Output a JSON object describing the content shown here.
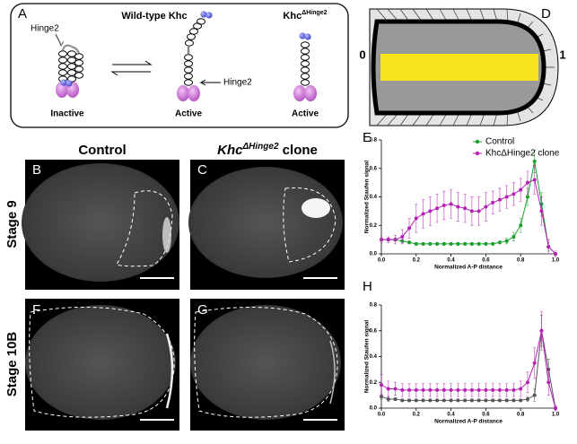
{
  "panel_labels": {
    "a": "A",
    "b": "B",
    "c": "C",
    "d": "D",
    "e": "E",
    "f": "F",
    "g": "G",
    "h": "H"
  },
  "diagram": {
    "wildtype_title": "Wild-type Khc",
    "mutant_title": {
      "base": "Khc",
      "sup": "ΔHinge2"
    },
    "hinge_label_inactive": "Hinge2",
    "hinge_label_active": "Hinge2",
    "state_inactive": "Inactive",
    "state_active_wt": "Active",
    "state_active_mutant": "Active"
  },
  "schematic": {
    "start": "0",
    "end": "1"
  },
  "columns": {
    "control": "Control",
    "clone": {
      "base": "Khc",
      "sup": "ΔHinge2",
      "rest": " clone"
    }
  },
  "rows": {
    "stage9": "Stage 9",
    "stage10b": "Stage 10B"
  },
  "chart_data": [
    {
      "type": "line",
      "xlabel": "Normalized A-P distance",
      "ylabel": "Normalized Staufen signal",
      "x": [
        0,
        0.04,
        0.08,
        0.12,
        0.16,
        0.2,
        0.24,
        0.28,
        0.32,
        0.36,
        0.4,
        0.44,
        0.48,
        0.52,
        0.56,
        0.6,
        0.64,
        0.68,
        0.72,
        0.76,
        0.8,
        0.84,
        0.88,
        0.92,
        0.96,
        1.0
      ],
      "series": [
        {
          "name": "Control",
          "color": "#1e9e2e",
          "values": [
            0.1,
            0.1,
            0.1,
            0.09,
            0.08,
            0.07,
            0.07,
            0.07,
            0.07,
            0.07,
            0.07,
            0.07,
            0.07,
            0.07,
            0.07,
            0.07,
            0.07,
            0.08,
            0.09,
            0.12,
            0.2,
            0.4,
            0.65,
            0.35,
            0.05,
            0.0
          ],
          "errors": [
            0.01,
            0.01,
            0.01,
            0.01,
            0.01,
            0.01,
            0.01,
            0.01,
            0.01,
            0.01,
            0.01,
            0.01,
            0.01,
            0.01,
            0.01,
            0.01,
            0.01,
            0.01,
            0.02,
            0.03,
            0.05,
            0.06,
            0.08,
            0.08,
            0.03,
            0.01
          ]
        },
        {
          "name": "KhcΔHinge2 clone",
          "color": "#b622b6",
          "values": [
            0.1,
            0.1,
            0.1,
            0.12,
            0.18,
            0.25,
            0.28,
            0.3,
            0.32,
            0.34,
            0.35,
            0.33,
            0.32,
            0.3,
            0.3,
            0.33,
            0.36,
            0.38,
            0.4,
            0.42,
            0.45,
            0.5,
            0.52,
            0.3,
            0.05,
            0.0
          ],
          "errors": [
            0.02,
            0.02,
            0.03,
            0.05,
            0.07,
            0.1,
            0.1,
            0.1,
            0.1,
            0.1,
            0.1,
            0.1,
            0.1,
            0.1,
            0.1,
            0.1,
            0.08,
            0.08,
            0.08,
            0.08,
            0.08,
            0.08,
            0.1,
            0.1,
            0.05,
            0.02
          ]
        }
      ],
      "xlim": [
        0,
        1.0
      ],
      "xticks": [
        {
          "value": 0,
          "label": "0.0"
        },
        0.2,
        0.4,
        0.6,
        0.8,
        {
          "value": 1.0,
          "label": "1.0"
        }
      ],
      "ylim": [
        0,
        0.8
      ],
      "yticks": [
        {
          "value": 0,
          "label": "0.0"
        },
        0.2,
        0.4,
        0.6,
        0.8
      ],
      "legend": "upper right"
    },
    {
      "type": "line",
      "xlabel": "Normalized A-P distance",
      "ylabel": "Normalized Staufen signal",
      "x": [
        0,
        0.04,
        0.08,
        0.12,
        0.16,
        0.2,
        0.24,
        0.28,
        0.32,
        0.36,
        0.4,
        0.44,
        0.48,
        0.52,
        0.56,
        0.6,
        0.64,
        0.68,
        0.72,
        0.76,
        0.8,
        0.84,
        0.88,
        0.92,
        0.96,
        1.0
      ],
      "series": [
        {
          "color": "#555555",
          "values": [
            0.09,
            0.07,
            0.07,
            0.06,
            0.06,
            0.06,
            0.06,
            0.06,
            0.06,
            0.06,
            0.06,
            0.06,
            0.06,
            0.06,
            0.06,
            0.06,
            0.06,
            0.06,
            0.06,
            0.06,
            0.06,
            0.07,
            0.1,
            0.6,
            0.3,
            0.0
          ],
          "errors": [
            0.02,
            0.02,
            0.01,
            0.01,
            0.01,
            0.01,
            0.01,
            0.01,
            0.01,
            0.01,
            0.01,
            0.01,
            0.01,
            0.01,
            0.01,
            0.01,
            0.01,
            0.01,
            0.01,
            0.01,
            0.01,
            0.02,
            0.05,
            0.12,
            0.08,
            0.01
          ]
        },
        {
          "color": "#b622b6",
          "values": [
            0.18,
            0.15,
            0.15,
            0.14,
            0.14,
            0.14,
            0.14,
            0.14,
            0.14,
            0.14,
            0.14,
            0.14,
            0.14,
            0.14,
            0.14,
            0.14,
            0.14,
            0.14,
            0.14,
            0.14,
            0.15,
            0.2,
            0.35,
            0.6,
            0.2,
            0.0
          ],
          "errors": [
            0.08,
            0.06,
            0.05,
            0.05,
            0.05,
            0.05,
            0.05,
            0.05,
            0.05,
            0.05,
            0.05,
            0.05,
            0.05,
            0.05,
            0.05,
            0.05,
            0.05,
            0.05,
            0.05,
            0.05,
            0.06,
            0.08,
            0.12,
            0.15,
            0.1,
            0.02
          ]
        }
      ],
      "xlim": [
        0,
        1.0
      ],
      "xticks": [
        {
          "value": 0,
          "label": "0.0"
        },
        0.2,
        0.4,
        0.6,
        0.8,
        {
          "value": 1.0,
          "label": "1.0"
        }
      ],
      "ylim": [
        0,
        0.8
      ],
      "yticks": [
        {
          "value": 0,
          "label": "0.0"
        },
        0.2,
        0.4,
        0.6,
        0.8
      ]
    }
  ]
}
